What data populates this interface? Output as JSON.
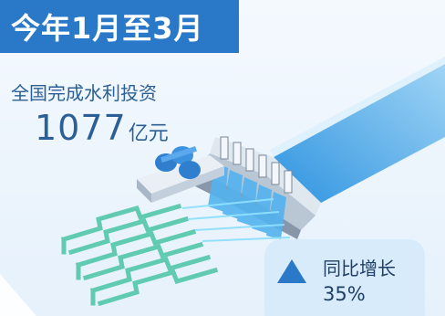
{
  "header": {
    "title": "今年1月至3月"
  },
  "stat": {
    "label": "全国完成水利投资",
    "value": "1077",
    "unit": "亿元"
  },
  "yoy": {
    "label": "同比增长",
    "value": "35%"
  },
  "colors": {
    "accent": "#2a78c8",
    "text": "#2b5f96",
    "water": "#3fa3e8",
    "field": "#4fc6b2"
  },
  "icons": [
    "dam-illustration",
    "pump-station-illustration",
    "irrigation-channels-illustration",
    "up-triangle-icon"
  ]
}
